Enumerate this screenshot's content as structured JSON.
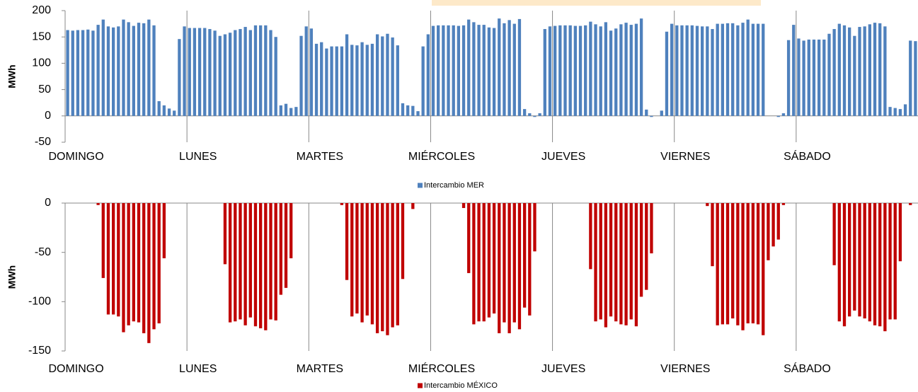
{
  "chart_data": [
    {
      "type": "bar",
      "y_label": "MWh",
      "categories": [
        "DOMINGO",
        null,
        null,
        null,
        null,
        null,
        null,
        null,
        null,
        null,
        null,
        null,
        null,
        null,
        null,
        null,
        null,
        null,
        null,
        null,
        null,
        null,
        null,
        null,
        "LUNES",
        null,
        null,
        null,
        null,
        null,
        null,
        null,
        null,
        null,
        null,
        null,
        null,
        null,
        null,
        null,
        null,
        null,
        null,
        null,
        null,
        null,
        null,
        null,
        "MARTES",
        null,
        null,
        null,
        null,
        null,
        null,
        null,
        null,
        null,
        null,
        null,
        null,
        null,
        null,
        null,
        null,
        null,
        null,
        null,
        null,
        null,
        null,
        null,
        "MIÉRCOLES",
        null,
        null,
        null,
        null,
        null,
        null,
        null,
        null,
        null,
        null,
        null,
        null,
        null,
        null,
        null,
        null,
        null,
        null,
        null,
        null,
        null,
        null,
        null,
        "JUEVES",
        null,
        null,
        null,
        null,
        null,
        null,
        null,
        null,
        null,
        null,
        null,
        null,
        null,
        null,
        null,
        null,
        null,
        null,
        null,
        null,
        null,
        null,
        null,
        "VIERNES",
        null,
        null,
        null,
        null,
        null,
        null,
        null,
        null,
        null,
        null,
        null,
        null,
        null,
        null,
        null,
        null,
        null,
        null,
        null,
        null,
        null,
        null,
        null,
        "SÁBADO",
        null,
        null,
        null,
        null,
        null,
        null,
        null,
        null,
        null,
        null,
        null,
        null,
        null,
        null,
        null,
        null,
        null,
        null,
        null,
        null,
        null,
        null,
        null
      ],
      "series": [
        {
          "name": "Intercambio MER",
          "color": "#4f81bd",
          "values": [
            163,
            162,
            163,
            163,
            164,
            162,
            173,
            183,
            170,
            168,
            170,
            183,
            178,
            171,
            177,
            176,
            183,
            172,
            28,
            20,
            14,
            10,
            146,
            170,
            167,
            167,
            167,
            167,
            165,
            162,
            152,
            155,
            158,
            163,
            165,
            169,
            163,
            172,
            172,
            172,
            163,
            150,
            20,
            23,
            15,
            17,
            152,
            170,
            166,
            137,
            140,
            128,
            132,
            132,
            132,
            155,
            135,
            134,
            140,
            135,
            137,
            155,
            151,
            156,
            149,
            134,
            24,
            20,
            19,
            9,
            132,
            155,
            171,
            172,
            172,
            172,
            172,
            171,
            172,
            183,
            178,
            173,
            173,
            168,
            167,
            185,
            176,
            182,
            175,
            184,
            13,
            5,
            -2,
            5,
            165,
            170,
            171,
            172,
            172,
            172,
            171,
            171,
            172,
            179,
            174,
            170,
            178,
            162,
            166,
            174,
            177,
            173,
            175,
            185,
            12,
            -2,
            0,
            10,
            160,
            175,
            172,
            172,
            172,
            172,
            171,
            170,
            170,
            165,
            175,
            175,
            176,
            176,
            172,
            177,
            183,
            175,
            175,
            175,
            0,
            0,
            -2,
            5,
            144,
            173,
            147,
            143,
            145,
            145,
            145,
            145,
            156,
            165,
            175,
            172,
            168,
            152,
            169,
            170,
            174,
            177,
            176,
            170,
            17,
            15,
            13,
            22,
            143,
            142
          ]
        }
      ],
      "ylim": [
        -50,
        200
      ],
      "yticks": [
        -50,
        0,
        50,
        100,
        150,
        200
      ],
      "legend": "bottom"
    },
    {
      "type": "bar",
      "y_label": "MWh",
      "categories": [
        "DOMINGO",
        null,
        null,
        null,
        null,
        null,
        null,
        null,
        null,
        null,
        null,
        null,
        null,
        null,
        null,
        null,
        null,
        null,
        null,
        null,
        null,
        null,
        null,
        null,
        "LUNES",
        null,
        null,
        null,
        null,
        null,
        null,
        null,
        null,
        null,
        null,
        null,
        null,
        null,
        null,
        null,
        null,
        null,
        null,
        null,
        null,
        null,
        null,
        null,
        "MARTES",
        null,
        null,
        null,
        null,
        null,
        null,
        null,
        null,
        null,
        null,
        null,
        null,
        null,
        null,
        null,
        null,
        null,
        null,
        null,
        null,
        null,
        null,
        null,
        "MIÉRCOLES",
        null,
        null,
        null,
        null,
        null,
        null,
        null,
        null,
        null,
        null,
        null,
        null,
        null,
        null,
        null,
        null,
        null,
        null,
        null,
        null,
        null,
        null,
        null,
        "JUEVES",
        null,
        null,
        null,
        null,
        null,
        null,
        null,
        null,
        null,
        null,
        null,
        null,
        null,
        null,
        null,
        null,
        null,
        null,
        null,
        null,
        null,
        null,
        null,
        "VIERNES",
        null,
        null,
        null,
        null,
        null,
        null,
        null,
        null,
        null,
        null,
        null,
        null,
        null,
        null,
        null,
        null,
        null,
        null,
        null,
        null,
        null,
        null,
        null,
        "SÁBADO",
        null,
        null,
        null,
        null,
        null,
        null,
        null,
        null,
        null,
        null,
        null,
        null,
        null,
        null,
        null,
        null,
        null,
        null,
        null,
        null,
        null,
        null,
        null
      ],
      "series": [
        {
          "name": "Intercambio MÉXICO",
          "color": "#c00000",
          "values": [
            0,
            0,
            0,
            0,
            0,
            0,
            -2,
            -76,
            -113,
            -113,
            -115,
            -131,
            -124,
            -120,
            -121,
            -132,
            -142,
            -128,
            -122,
            -56,
            0,
            0,
            0,
            0,
            0,
            0,
            0,
            0,
            0,
            0,
            0,
            -62,
            -121,
            -120,
            -118,
            -124,
            -116,
            -125,
            -127,
            -129,
            -118,
            -119,
            -93,
            -86,
            -56,
            0,
            0,
            0,
            0,
            0,
            0,
            0,
            0,
            0,
            -2,
            -78,
            -115,
            -112,
            -121,
            -114,
            -123,
            -132,
            -130,
            -134,
            -126,
            -124,
            -77,
            0,
            -6,
            0,
            0,
            0,
            0,
            0,
            0,
            0,
            0,
            0,
            -5,
            -71,
            -123,
            -120,
            -120,
            -116,
            -112,
            -132,
            -121,
            -132,
            -121,
            -128,
            -106,
            -114,
            -49,
            0,
            0,
            0,
            0,
            0,
            0,
            0,
            0,
            0,
            0,
            -67,
            -120,
            -118,
            -126,
            -115,
            -120,
            -123,
            -124,
            -118,
            -125,
            -95,
            -88,
            -51,
            0,
            0,
            0,
            0,
            0,
            0,
            0,
            0,
            0,
            0,
            -3,
            -64,
            -124,
            -123,
            -123,
            -117,
            -124,
            -129,
            -122,
            -122,
            -123,
            -134,
            -58,
            -44,
            -37,
            -2,
            0,
            0,
            0,
            0,
            0,
            0,
            0,
            0,
            0,
            -63,
            -120,
            -125,
            -115,
            -109,
            -115,
            -117,
            -120,
            -124,
            -125,
            -130,
            -118,
            -118,
            -59,
            0,
            -2,
            0
          ]
        }
      ],
      "ylim": [
        -150,
        0
      ],
      "yticks": [
        -150,
        -100,
        -50,
        0
      ],
      "legend": "bottom"
    }
  ]
}
